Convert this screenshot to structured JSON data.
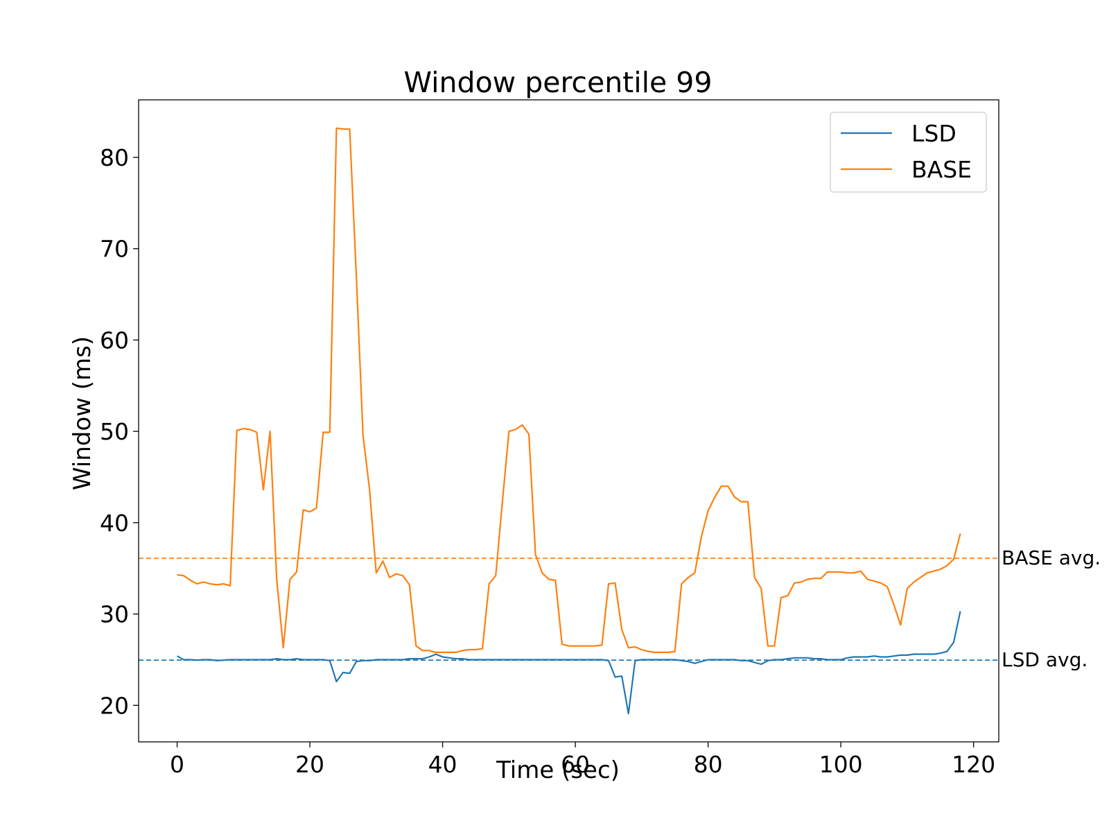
{
  "chart_data": {
    "type": "line",
    "title": "Window percentile 99",
    "xlabel": "Time (sec)",
    "ylabel": "Window (ms)",
    "xlim": [
      -5.8,
      123.8
    ],
    "ylim": [
      16,
      86.3
    ],
    "xticks": [
      0,
      20,
      40,
      60,
      80,
      100,
      120
    ],
    "yticks": [
      20,
      30,
      40,
      50,
      60,
      70,
      80
    ],
    "grid": false,
    "legend": "top-right",
    "x": [
      0,
      1,
      2,
      3,
      4,
      5,
      6,
      7,
      8,
      9,
      10,
      11,
      12,
      13,
      14,
      15,
      16,
      17,
      18,
      19,
      20,
      21,
      22,
      23,
      24,
      25,
      26,
      27,
      28,
      29,
      30,
      31,
      32,
      33,
      34,
      35,
      36,
      37,
      38,
      39,
      40,
      41,
      42,
      43,
      44,
      45,
      46,
      47,
      48,
      49,
      50,
      51,
      52,
      53,
      54,
      55,
      56,
      57,
      58,
      59,
      60,
      61,
      62,
      63,
      64,
      65,
      66,
      67,
      68,
      69,
      70,
      71,
      72,
      73,
      74,
      75,
      76,
      77,
      78,
      79,
      80,
      81,
      82,
      83,
      84,
      85,
      86,
      87,
      88,
      89,
      90,
      91,
      92,
      93,
      94,
      95,
      96,
      97,
      98,
      99,
      100,
      101,
      102,
      103,
      104,
      105,
      106,
      107,
      108,
      109,
      110,
      111,
      112,
      113,
      114,
      115,
      116,
      117,
      118
    ],
    "series": [
      {
        "name": "LSD",
        "color": "#1f77b4",
        "values": [
          25.4,
          25.0,
          25.0,
          24.95,
          25.0,
          25.0,
          24.9,
          24.95,
          25.0,
          25.0,
          25.0,
          25.0,
          25.0,
          25.0,
          25.0,
          25.1,
          25.0,
          25.0,
          25.1,
          25.0,
          25.0,
          25.0,
          25.0,
          24.9,
          22.6,
          23.6,
          23.5,
          24.8,
          24.9,
          24.9,
          25.0,
          25.0,
          25.0,
          25.0,
          25.0,
          25.1,
          25.1,
          25.1,
          25.3,
          25.6,
          25.3,
          25.2,
          25.1,
          25.1,
          25.0,
          25.0,
          25.0,
          25.0,
          25.0,
          25.0,
          25.0,
          25.0,
          25.0,
          25.0,
          25.0,
          25.0,
          25.0,
          25.0,
          25.0,
          25.0,
          25.0,
          25.0,
          25.0,
          25.0,
          25.0,
          24.9,
          23.1,
          23.2,
          19.1,
          24.9,
          25.0,
          25.0,
          25.0,
          25.0,
          25.0,
          25.0,
          24.9,
          24.8,
          24.6,
          24.8,
          25.0,
          25.0,
          25.0,
          25.0,
          25.0,
          24.9,
          24.9,
          24.7,
          24.5,
          24.9,
          25.0,
          25.0,
          25.1,
          25.2,
          25.2,
          25.2,
          25.1,
          25.1,
          25.0,
          25.0,
          25.0,
          25.2,
          25.3,
          25.3,
          25.3,
          25.4,
          25.3,
          25.3,
          25.4,
          25.5,
          25.5,
          25.6,
          25.6,
          25.6,
          25.6,
          25.7,
          25.9,
          26.9,
          30.3
        ]
      },
      {
        "name": "BASE",
        "color": "#ff7f0e",
        "values": [
          34.3,
          34.2,
          33.7,
          33.3,
          33.5,
          33.3,
          33.2,
          33.3,
          33.1,
          50.1,
          50.3,
          50.2,
          49.9,
          43.6,
          50.0,
          33.8,
          26.3,
          33.8,
          34.6,
          41.4,
          41.2,
          41.6,
          49.9,
          49.9,
          83.2,
          83.1,
          83.1,
          67.0,
          49.6,
          43.6,
          34.5,
          35.8,
          34.0,
          34.4,
          34.2,
          33.2,
          26.5,
          26.0,
          26.0,
          25.8,
          25.8,
          25.8,
          25.8,
          26.0,
          26.1,
          26.1,
          26.2,
          33.3,
          34.2,
          42.2,
          50.0,
          50.2,
          50.7,
          49.7,
          36.5,
          34.5,
          33.8,
          33.7,
          26.7,
          26.5,
          26.5,
          26.5,
          26.5,
          26.5,
          26.6,
          33.3,
          33.4,
          28.3,
          26.3,
          26.4,
          26.1,
          25.9,
          25.8,
          25.8,
          25.8,
          25.9,
          33.3,
          34.0,
          34.5,
          38.5,
          41.3,
          42.8,
          44.0,
          44.0,
          42.8,
          42.3,
          42.3,
          34.0,
          32.8,
          26.5,
          26.5,
          31.8,
          32.0,
          33.4,
          33.5,
          33.8,
          33.9,
          33.9,
          34.6,
          34.6,
          34.6,
          34.5,
          34.5,
          34.7,
          33.8,
          33.6,
          33.4,
          33.0,
          31.0,
          28.8,
          32.8,
          33.5,
          34.0,
          34.5,
          34.7,
          34.9,
          35.3,
          36.0,
          38.8
        ]
      }
    ],
    "hlines": [
      {
        "name": "BASE avg.",
        "y": 36.1,
        "color": "#ff7f0e",
        "style": "dashed"
      },
      {
        "name": "LSD avg.",
        "y": 24.95,
        "color": "#1f77b4",
        "style": "dashed"
      }
    ]
  }
}
